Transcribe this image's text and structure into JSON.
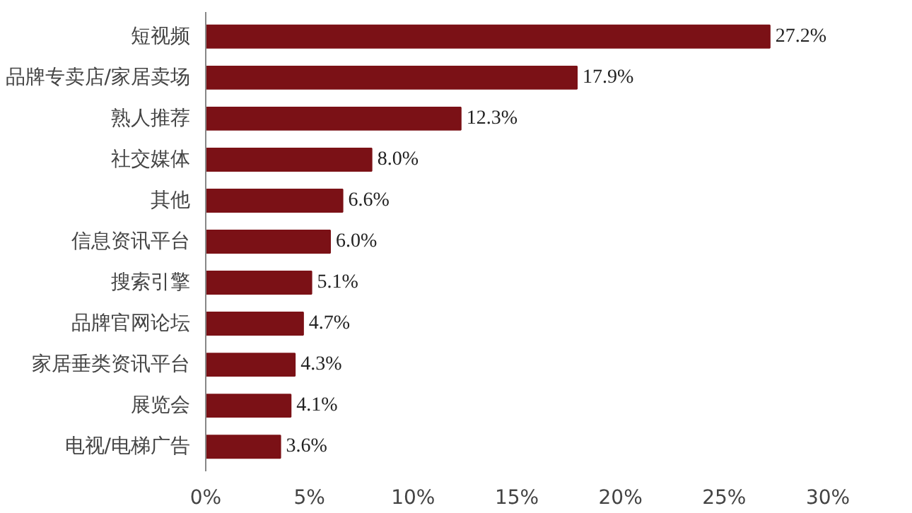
{
  "chart_data": {
    "type": "bar",
    "orientation": "horizontal",
    "categories": [
      "短视频",
      "品牌专卖店/家居卖场",
      "熟人推荐",
      "社交媒体",
      "其他",
      "信息资讯平台",
      "搜索引擎",
      "品牌官网论坛",
      "家居垂类资讯平台",
      "展览会",
      "电视/电梯广告"
    ],
    "values": [
      27.2,
      17.9,
      12.3,
      8.0,
      6.6,
      6.0,
      5.1,
      4.7,
      4.3,
      4.1,
      3.6
    ],
    "value_labels": [
      "27.2%",
      "17.9%",
      "12.3%",
      "8.0%",
      "6.6%",
      "6.0%",
      "5.1%",
      "4.7%",
      "4.3%",
      "4.1%",
      "3.6%"
    ],
    "color": "#7b1116",
    "xlim": [
      0,
      30
    ],
    "xticks": [
      {
        "value": 0,
        "label": "0%"
      },
      {
        "value": 5,
        "label": "5%"
      },
      {
        "value": 10,
        "label": "10%"
      },
      {
        "value": 15,
        "label": "15%"
      },
      {
        "value": 20,
        "label": "20%"
      },
      {
        "value": 25,
        "label": "25%"
      },
      {
        "value": 30,
        "label": "30%"
      }
    ],
    "grid": false
  }
}
